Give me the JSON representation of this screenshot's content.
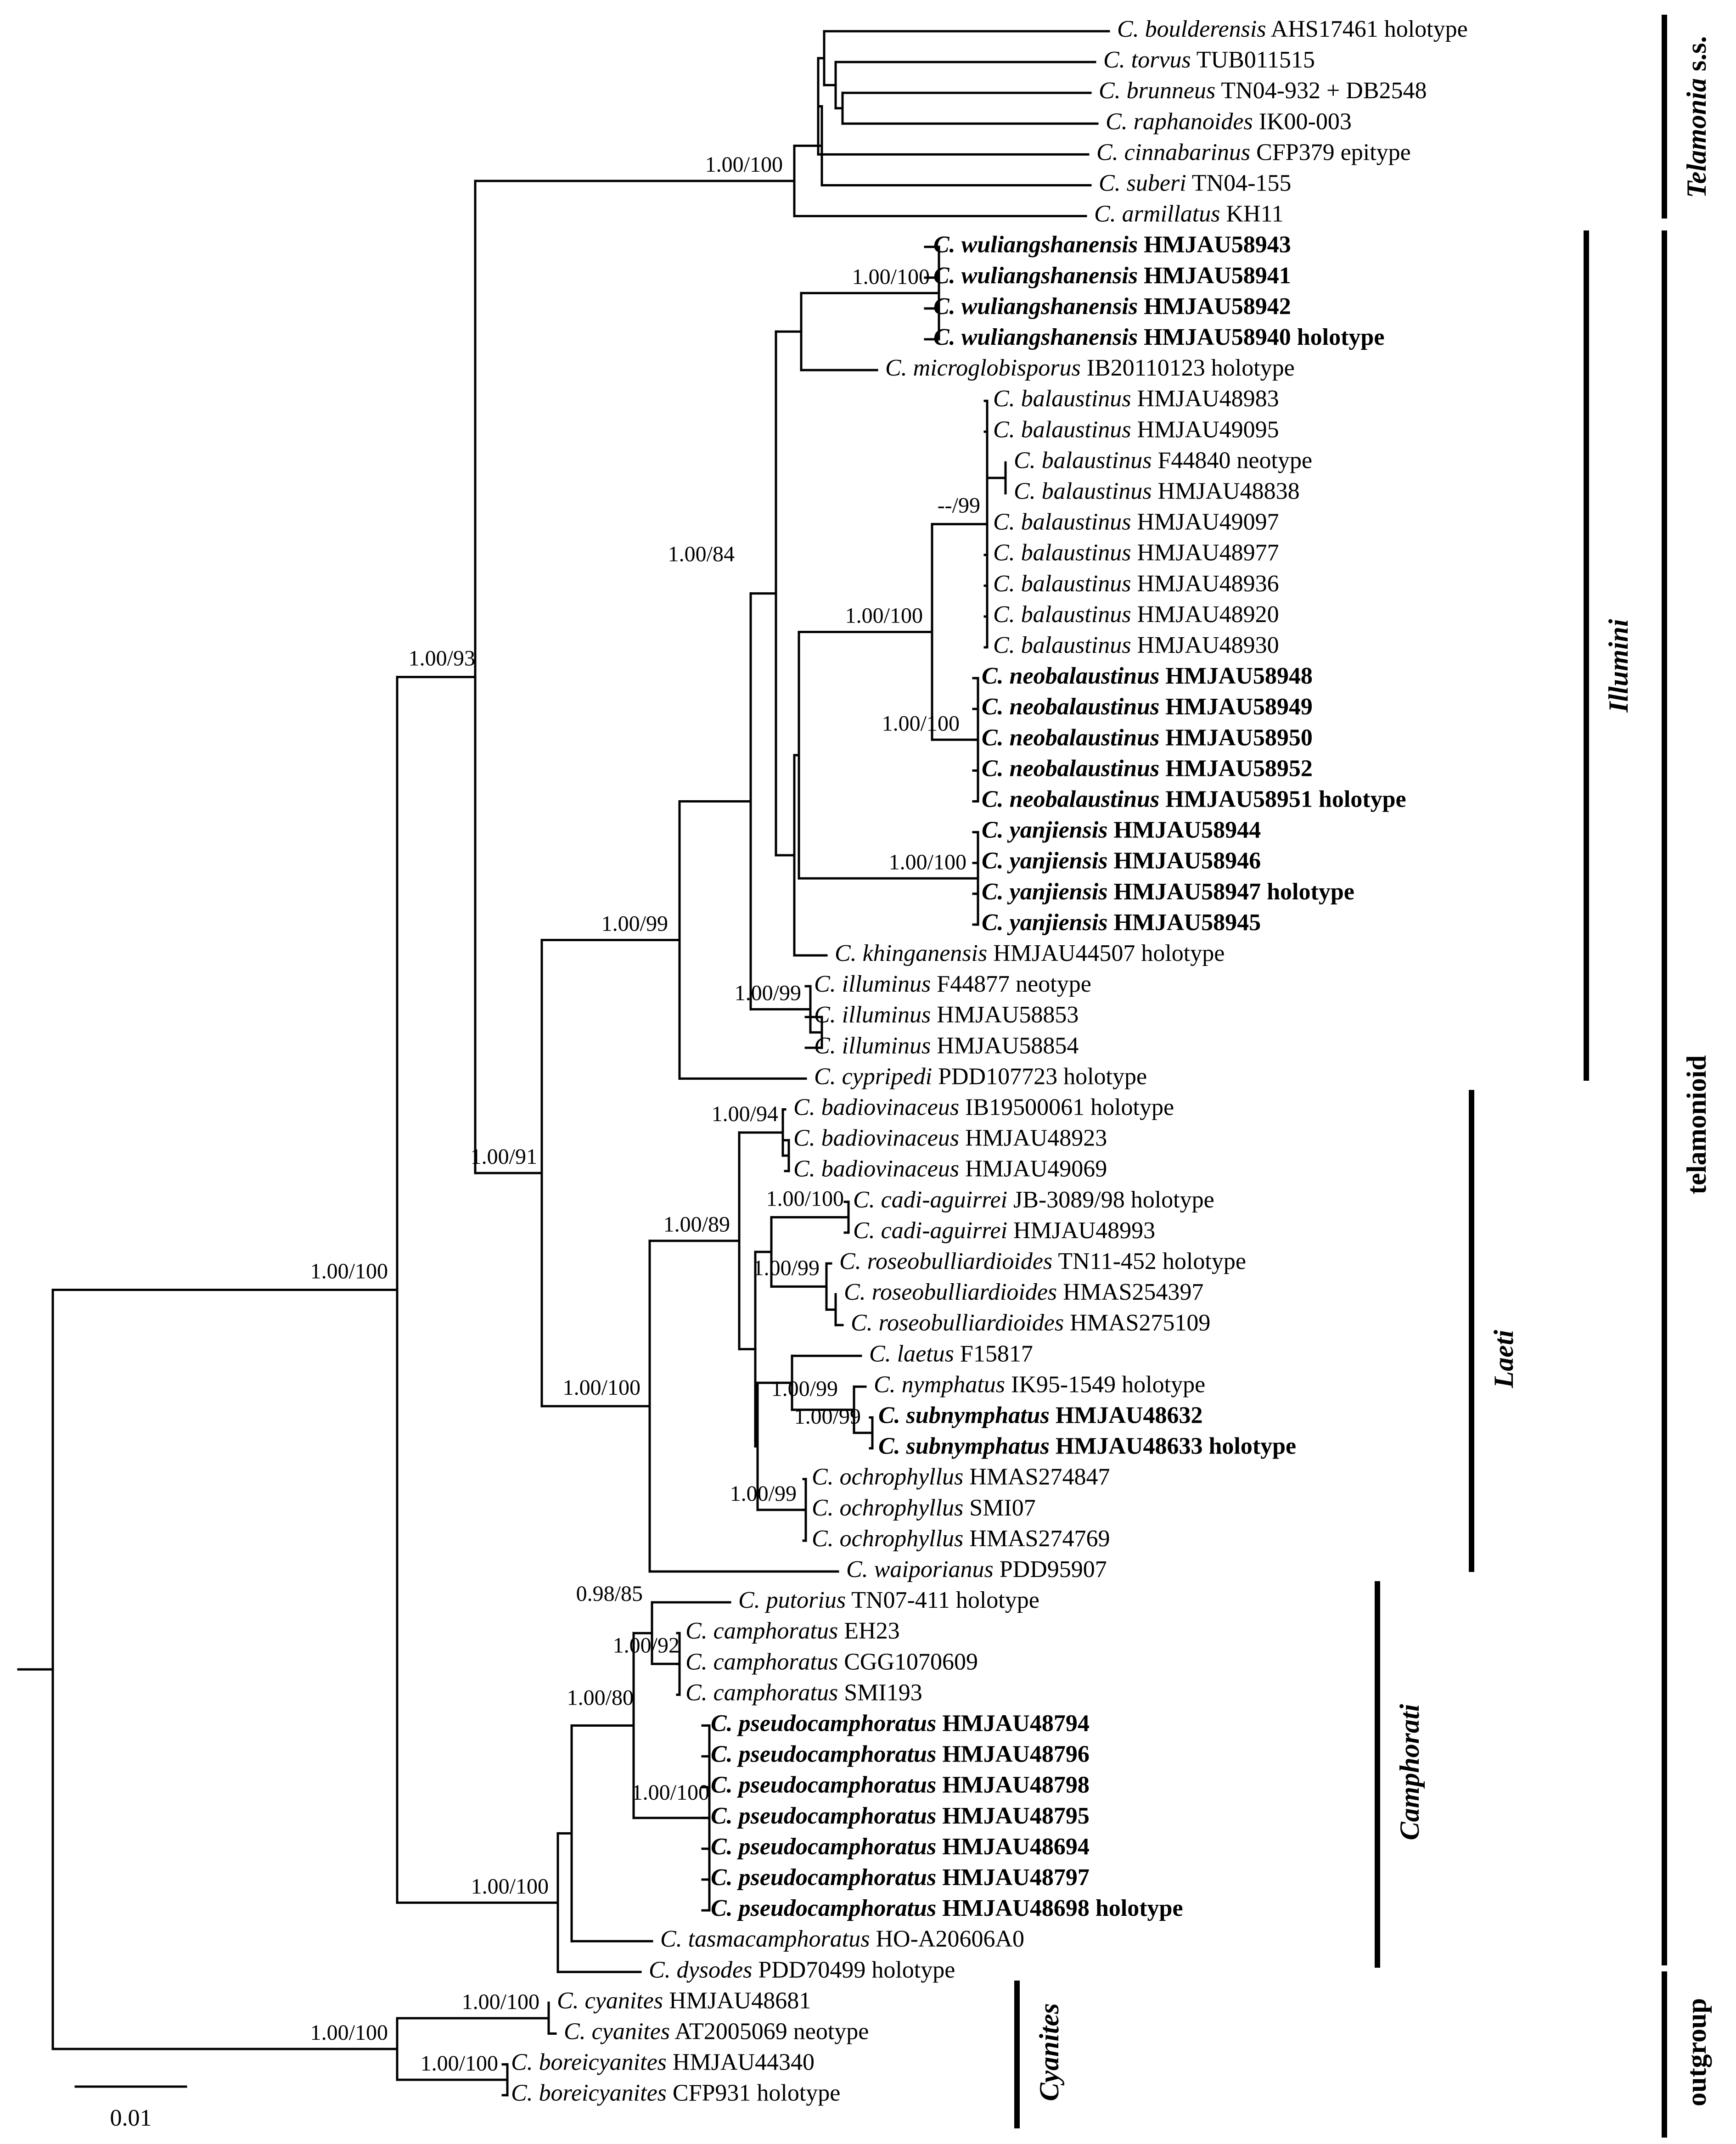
{
  "tips": [
    {
      "genus": "C.",
      "species": "boulderensis",
      "voucher": "AHS17461 holotype",
      "bold": false
    },
    {
      "genus": "C.",
      "species": "torvus",
      "voucher": "TUB011515",
      "bold": false
    },
    {
      "genus": "C.",
      "species": "brunneus",
      "voucher": "TN04-932 + DB2548",
      "bold": false
    },
    {
      "genus": "C.",
      "species": "raphanoides",
      "voucher": "IK00-003",
      "bold": false
    },
    {
      "genus": "C.",
      "species": "cinnabarinus",
      "voucher": "CFP379 epitype",
      "bold": false
    },
    {
      "genus": "C.",
      "species": "suberi",
      "voucher": "TN04-155",
      "bold": false
    },
    {
      "genus": "C.",
      "species": "armillatus",
      "voucher": "KH11",
      "bold": false
    },
    {
      "genus": "C.",
      "species": "wuliangshanensis",
      "voucher": "HMJAU58943",
      "bold": true
    },
    {
      "genus": "C.",
      "species": "wuliangshanensis",
      "voucher": "HMJAU58941",
      "bold": true
    },
    {
      "genus": "C.",
      "species": "wuliangshanensis",
      "voucher": "HMJAU58942",
      "bold": true
    },
    {
      "genus": "C.",
      "species": "wuliangshanensis",
      "voucher": "HMJAU58940 holotype",
      "bold": true
    },
    {
      "genus": "C.",
      "species": "microglobisporus",
      "voucher": "IB20110123 holotype",
      "bold": false
    },
    {
      "genus": "C.",
      "species": "balaustinus",
      "voucher": "HMJAU48983",
      "bold": false
    },
    {
      "genus": "C.",
      "species": "balaustinus",
      "voucher": "HMJAU49095",
      "bold": false
    },
    {
      "genus": "C.",
      "species": "balaustinus",
      "voucher": "F44840 neotype",
      "bold": false
    },
    {
      "genus": "C.",
      "species": "balaustinus",
      "voucher": "HMJAU48838",
      "bold": false
    },
    {
      "genus": "C.",
      "species": "balaustinus",
      "voucher": "HMJAU49097",
      "bold": false
    },
    {
      "genus": "C.",
      "species": "balaustinus",
      "voucher": "HMJAU48977",
      "bold": false
    },
    {
      "genus": "C.",
      "species": "balaustinus",
      "voucher": "HMJAU48936",
      "bold": false
    },
    {
      "genus": "C.",
      "species": "balaustinus",
      "voucher": "HMJAU48920",
      "bold": false
    },
    {
      "genus": "C.",
      "species": "balaustinus",
      "voucher": "HMJAU48930",
      "bold": false
    },
    {
      "genus": "C.",
      "species": "neobalaustinus",
      "voucher": "HMJAU58948",
      "bold": true
    },
    {
      "genus": "C.",
      "species": "neobalaustinus",
      "voucher": "HMJAU58949",
      "bold": true
    },
    {
      "genus": "C.",
      "species": "neobalaustinus",
      "voucher": "HMJAU58950",
      "bold": true
    },
    {
      "genus": "C.",
      "species": "neobalaustinus",
      "voucher": "HMJAU58952",
      "bold": true
    },
    {
      "genus": "C.",
      "species": "neobalaustinus",
      "voucher": "HMJAU58951 holotype",
      "bold": true
    },
    {
      "genus": "C.",
      "species": "yanjiensis",
      "voucher": "HMJAU58944",
      "bold": true
    },
    {
      "genus": "C.",
      "species": "yanjiensis",
      "voucher": "HMJAU58946",
      "bold": true
    },
    {
      "genus": "C.",
      "species": "yanjiensis",
      "voucher": "HMJAU58947 holotype",
      "bold": true
    },
    {
      "genus": "C.",
      "species": "yanjiensis",
      "voucher": "HMJAU58945",
      "bold": true
    },
    {
      "genus": "C.",
      "species": "khinganensis",
      "voucher": "HMJAU44507 holotype",
      "bold": false
    },
    {
      "genus": "C.",
      "species": "illuminus",
      "voucher": "F44877 neotype",
      "bold": false
    },
    {
      "genus": "C.",
      "species": "illuminus",
      "voucher": "HMJAU58853",
      "bold": false
    },
    {
      "genus": "C.",
      "species": "illuminus",
      "voucher": "HMJAU58854",
      "bold": false
    },
    {
      "genus": "C.",
      "species": "cypripedi",
      "voucher": "PDD107723 holotype",
      "bold": false
    },
    {
      "genus": "C.",
      "species": "badiovinaceus",
      "voucher": "IB19500061 holotype",
      "bold": false
    },
    {
      "genus": "C.",
      "species": "badiovinaceus",
      "voucher": "HMJAU48923",
      "bold": false
    },
    {
      "genus": "C.",
      "species": "badiovinaceus",
      "voucher": "HMJAU49069",
      "bold": false
    },
    {
      "genus": "C.",
      "species": "cadi-aguirrei",
      "voucher": "JB-3089/98 holotype",
      "bold": false
    },
    {
      "genus": "C.",
      "species": "cadi-aguirrei",
      "voucher": "HMJAU48993",
      "bold": false
    },
    {
      "genus": "C.",
      "species": "roseobulliardioides",
      "voucher": "TN11-452 holotype",
      "bold": false
    },
    {
      "genus": "C.",
      "species": "roseobulliardioides",
      "voucher": "HMAS254397",
      "bold": false
    },
    {
      "genus": "C.",
      "species": "roseobulliardioides",
      "voucher": "HMAS275109",
      "bold": false
    },
    {
      "genus": "C.",
      "species": "laetus",
      "voucher": "F15817",
      "bold": false
    },
    {
      "genus": "C.",
      "species": "nymphatus",
      "voucher": "IK95-1549 holotype",
      "bold": false
    },
    {
      "genus": "C.",
      "species": "subnymphatus",
      "voucher": "HMJAU48632",
      "bold": true
    },
    {
      "genus": "C.",
      "species": "subnymphatus",
      "voucher": "HMJAU48633 holotype",
      "bold": true
    },
    {
      "genus": "C.",
      "species": "ochrophyllus",
      "voucher": "HMAS274847",
      "bold": false
    },
    {
      "genus": "C.",
      "species": "ochrophyllus",
      "voucher": "SMI07",
      "bold": false
    },
    {
      "genus": "C.",
      "species": "ochrophyllus",
      "voucher": "HMAS274769",
      "bold": false
    },
    {
      "genus": "C.",
      "species": "waiporianus",
      "voucher": "PDD95907",
      "bold": false
    },
    {
      "genus": "C.",
      "species": "putorius",
      "voucher": "TN07-411 holotype",
      "bold": false
    },
    {
      "genus": "C.",
      "species": "camphoratus",
      "voucher": "EH23",
      "bold": false
    },
    {
      "genus": "C.",
      "species": "camphoratus",
      "voucher": "CGG1070609",
      "bold": false
    },
    {
      "genus": "C.",
      "species": "camphoratus",
      "voucher": "SMI193",
      "bold": false
    },
    {
      "genus": "C.",
      "species": "pseudocamphoratus",
      "voucher": "HMJAU48794",
      "bold": true
    },
    {
      "genus": "C.",
      "species": "pseudocamphoratus",
      "voucher": "HMJAU48796",
      "bold": true
    },
    {
      "genus": "C.",
      "species": "pseudocamphoratus",
      "voucher": "HMJAU48798",
      "bold": true
    },
    {
      "genus": "C.",
      "species": "pseudocamphoratus",
      "voucher": "HMJAU48795",
      "bold": true
    },
    {
      "genus": "C.",
      "species": "pseudocamphoratus",
      "voucher": "HMJAU48694",
      "bold": true
    },
    {
      "genus": "C.",
      "species": "pseudocamphoratus",
      "voucher": "HMJAU48797",
      "bold": true
    },
    {
      "genus": "C.",
      "species": "pseudocamphoratus",
      "voucher": "HMJAU48698 holotype",
      "bold": true
    },
    {
      "genus": "C.",
      "species": "tasmacamphoratus",
      "voucher": "HO-A20606A0",
      "bold": false
    },
    {
      "genus": "C.",
      "species": "dysodes",
      "voucher": "PDD70499 holotype",
      "bold": false
    },
    {
      "genus": "C.",
      "species": "cyanites",
      "voucher": "HMJAU48681",
      "bold": false
    },
    {
      "genus": "C.",
      "species": "cyanites",
      "voucher": "AT2005069 neotype",
      "bold": false
    },
    {
      "genus": "C.",
      "species": "boreicyanites",
      "voucher": "HMJAU44340",
      "bold": false
    },
    {
      "genus": "C.",
      "species": "boreicyanites",
      "voucher": "CFP931 holotype",
      "bold": false
    }
  ],
  "support_values": [
    "1.00/100",
    "1.00/100",
    "--/99",
    "1.00/100",
    "1.00/100",
    "1.00/100",
    "1.00/84",
    "1.00/99",
    "1.00/99",
    "1.00/93",
    "1.00/94",
    "1.00/100",
    "1.00/99",
    "1.00/89",
    "1.00/99",
    "1.00/99",
    "1.00/99",
    "1.00/100",
    "1.00/91",
    "1.00/100",
    "0.98/85",
    "1.00/92",
    "1.00/100",
    "1.00/80",
    "1.00/100",
    "1.00/100",
    "1.00/100",
    "1.00/100"
  ],
  "groups": [
    {
      "name": "Telamonia s.s.",
      "italic_part": "Telamonia",
      "plain_part": " s.s."
    },
    {
      "name": "Illumini",
      "italic_part": "Illumini",
      "plain_part": ""
    },
    {
      "name": "Laeti",
      "italic_part": "Laeti",
      "plain_part": ""
    },
    {
      "name": "Camphorati",
      "italic_part": "Camphorati",
      "plain_part": ""
    },
    {
      "name": "Cyanites",
      "italic_part": "Cyanites",
      "plain_part": ""
    },
    {
      "name": "telamonioid",
      "italic_part": "",
      "plain_part": "telamonioid"
    },
    {
      "name": "outgroup",
      "italic_part": "",
      "plain_part": "outgroup"
    }
  ],
  "scale_bar": {
    "label": "0.01"
  }
}
